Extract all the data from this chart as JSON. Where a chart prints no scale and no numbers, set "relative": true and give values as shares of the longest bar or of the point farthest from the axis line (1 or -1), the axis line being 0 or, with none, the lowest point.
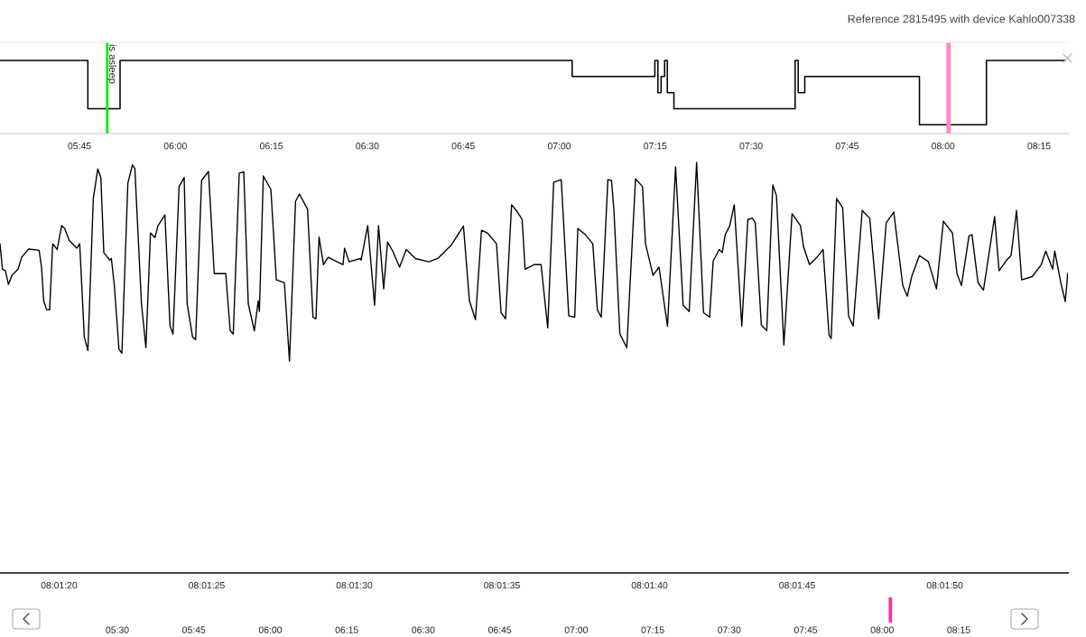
{
  "chart_data": [
    {
      "type": "step",
      "title": "Reference 2815495 with device Kahlo007338",
      "relative": true,
      "grid": false,
      "xlim": [
        5.543,
        8.3276
      ],
      "xticks": [
        {
          "value": 5.75,
          "label": "05:45"
        },
        {
          "value": 6.0,
          "label": "06:00"
        },
        {
          "value": 6.25,
          "label": "06:15"
        },
        {
          "value": 6.5,
          "label": "06:30"
        },
        {
          "value": 6.75,
          "label": "06:45"
        },
        {
          "value": 7.0,
          "label": "07:00"
        },
        {
          "value": 7.25,
          "label": "07:15"
        },
        {
          "value": 7.5,
          "label": "07:30"
        },
        {
          "value": 7.75,
          "label": "07:45"
        },
        {
          "value": 8.0,
          "label": "08:00"
        },
        {
          "value": 8.25,
          "label": "08:15"
        }
      ],
      "ref_lines": [
        {
          "axis": "x",
          "value": 5.8224,
          "label": "is asleep",
          "color": "#00ee00"
        },
        {
          "axis": "x",
          "value": 8.0143,
          "label": null,
          "color": "#ff88cc"
        }
      ],
      "series": [
        {
          "color": "#000000",
          "x": [
            5.543,
            5.7719,
            5.8558,
            7.0336,
            7.2491,
            7.257,
            7.2653,
            7.2745,
            7.2815,
            7.2987,
            7.6145,
            7.6225,
            7.6397,
            7.9384,
            8.1129,
            8.3182
          ],
          "values": [
            1.0,
            0.34,
            1.0,
            0.78,
            1.0,
            0.56,
            0.78,
            1.0,
            0.56,
            0.34,
            1.0,
            0.56,
            0.78,
            0.12,
            1.0,
            1.0
          ]
        }
      ]
    },
    {
      "type": "line",
      "relative": true,
      "grid": false,
      "xlim": [
        8.021666,
        8.031715
      ],
      "xticks": [
        {
          "value": 8.022222,
          "label": "08:01:20"
        },
        {
          "value": 8.023611,
          "label": "08:01:25"
        },
        {
          "value": 8.025,
          "label": "08:01:30"
        },
        {
          "value": 8.026389,
          "label": "08:01:35"
        },
        {
          "value": 8.027778,
          "label": "08:01:40"
        },
        {
          "value": 8.029167,
          "label": "08:01:45"
        },
        {
          "value": 8.030556,
          "label": "08:01:50"
        }
      ],
      "series": [
        {
          "color": "#000000",
          "x": [
            8.021666,
            8.021689,
            8.021717,
            8.021745,
            8.021779,
            8.021836,
            8.02187,
            8.021935,
            8.022034,
            8.022057,
            8.022077,
            8.022105,
            8.022133,
            8.022162,
            8.022204,
            8.022246,
            8.022275,
            8.022317,
            8.022388,
            8.022416,
            8.022459,
            8.022493,
            8.022544,
            8.022586,
            8.022615,
            8.022643,
            8.0227,
            8.022714,
            8.022742,
            8.022785,
            8.022813,
            8.022869,
            8.022912,
            8.022935,
            8.022997,
            8.023039,
            8.023082,
            8.023124,
            8.023153,
            8.023218,
            8.023266,
            8.023294,
            8.023351,
            8.023399,
            8.023427,
            8.023478,
            8.023507,
            8.023563,
            8.023628,
            8.023682,
            8.023761,
            8.02379,
            8.023832,
            8.023861,
            8.023917,
            8.02396,
            8.024002,
            8.024059,
            8.024096,
            8.024107,
            8.024144,
            8.024215,
            8.024266,
            8.024342,
            8.02439,
            8.024447,
            8.024484,
            8.02456,
            8.024611,
            8.024639,
            8.024668,
            8.02471,
            8.024753,
            8.024894,
            8.024908,
            8.024951,
            8.025058,
            8.025064,
            8.025126,
            8.025191,
            8.025228,
            8.025276,
            8.025313,
            8.025361,
            8.025426,
            8.025489,
            8.025574,
            8.025701,
            8.025786,
            8.025914,
            8.026027,
            8.026083,
            8.02614,
            8.026197,
            8.026253,
            8.026338,
            8.026381,
            8.026423,
            8.02648,
            8.026536,
            8.026579,
            8.026607,
            8.026692,
            8.026757,
            8.02682,
            8.026876,
            8.026947,
            8.027018,
            8.027074,
            8.027103,
            8.027174,
            8.027244,
            8.027287,
            8.027324,
            8.027386,
            8.02742,
            8.027443,
            8.027499,
            8.027564,
            8.027646,
            8.027712,
            8.02774,
            8.027811,
            8.027867,
            8.027947,
            8.028023,
            8.028094,
            8.028151,
            8.028221,
            8.028286,
            8.028343,
            8.028377,
            8.028434,
            8.028462,
            8.02849,
            8.028533,
            8.028575,
            8.028646,
            8.028703,
            8.028745,
            8.028773,
            8.02883,
            8.028881,
            8.028938,
            8.028972,
            8.029042,
            8.029119,
            8.029198,
            8.029227,
            8.029283,
            8.029354,
            8.029411,
            8.029467,
            8.029487,
            8.029538,
            8.029595,
            8.029651,
            8.029694,
            8.029779,
            8.02985,
            8.029934,
            8.030005,
            8.030076,
            8.030161,
            8.030203,
            8.030246,
            8.030317,
            8.030402,
            8.030478,
            8.030543,
            8.030628,
            8.030671,
            8.030713,
            8.030784,
            8.030812,
            8.030869,
            8.03092,
            8.031025,
            8.031067,
            8.031138,
            8.03118,
            8.031231,
            8.03128,
            8.031379,
            8.031464,
            8.031506,
            8.031571,
            8.031591,
            8.031648,
            8.03169,
            8.031713
          ],
          "values": [
            0.802,
            0.74,
            0.736,
            0.703,
            0.725,
            0.74,
            0.769,
            0.789,
            0.786,
            0.744,
            0.663,
            0.641,
            0.641,
            0.802,
            0.788,
            0.846,
            0.839,
            0.81,
            0.791,
            0.802,
            0.575,
            0.542,
            0.912,
            0.984,
            0.963,
            0.78,
            0.762,
            0.766,
            0.7,
            0.546,
            0.535,
            0.949,
            0.994,
            0.985,
            0.656,
            0.549,
            0.828,
            0.817,
            0.846,
            0.872,
            0.601,
            0.582,
            0.941,
            0.963,
            0.656,
            0.575,
            0.568,
            0.956,
            0.978,
            0.729,
            0.729,
            0.729,
            0.59,
            0.582,
            0.974,
            0.977,
            0.656,
            0.59,
            0.663,
            0.637,
            0.967,
            0.934,
            0.714,
            0.707,
            0.516,
            0.905,
            0.923,
            0.886,
            0.623,
            0.619,
            0.818,
            0.751,
            0.769,
            0.751,
            0.791,
            0.758,
            0.766,
            0.762,
            0.846,
            0.652,
            0.846,
            0.692,
            0.806,
            0.784,
            0.745,
            0.788,
            0.766,
            0.758,
            0.766,
            0.799,
            0.845,
            0.663,
            0.617,
            0.835,
            0.828,
            0.802,
            0.634,
            0.619,
            0.897,
            0.879,
            0.861,
            0.74,
            0.751,
            0.751,
            0.597,
            0.952,
            0.958,
            0.626,
            0.623,
            0.839,
            0.824,
            0.802,
            0.641,
            0.623,
            0.958,
            0.956,
            0.883,
            0.582,
            0.549,
            0.96,
            0.941,
            0.802,
            0.725,
            0.745,
            0.601,
            0.989,
            0.652,
            0.637,
            1.0,
            0.634,
            0.623,
            0.76,
            0.788,
            0.78,
            0.824,
            0.846,
            0.897,
            0.601,
            0.861,
            0.864,
            0.853,
            0.604,
            0.59,
            0.945,
            0.919,
            0.555,
            0.875,
            0.846,
            0.795,
            0.751,
            0.769,
            0.788,
            0.579,
            0.571,
            0.912,
            0.89,
            0.626,
            0.601,
            0.883,
            0.864,
            0.619,
            0.853,
            0.879,
            0.7,
            0.674,
            0.723,
            0.773,
            0.758,
            0.692,
            0.857,
            0.828,
            0.729,
            0.7,
            0.821,
            0.824,
            0.707,
            0.689,
            0.868,
            0.736,
            0.762,
            0.773,
            0.883,
            0.714,
            0.722,
            0.751,
            0.784,
            0.74,
            0.784,
            0.707,
            0.661,
            0.73
          ]
        }
      ]
    },
    {
      "type": "bar",
      "relative": true,
      "xlim": [
        5.5,
        8.25
      ],
      "xticks": [
        {
          "value": 5.5,
          "label": "05:30"
        },
        {
          "value": 5.75,
          "label": "05:45"
        },
        {
          "value": 6.0,
          "label": "06:00"
        },
        {
          "value": 6.25,
          "label": "06:15"
        },
        {
          "value": 6.5,
          "label": "06:30"
        },
        {
          "value": 6.75,
          "label": "06:45"
        },
        {
          "value": 7.0,
          "label": "07:00"
        },
        {
          "value": 7.25,
          "label": "07:15"
        },
        {
          "value": 7.5,
          "label": "07:30"
        },
        {
          "value": 7.75,
          "label": "07:45"
        },
        {
          "value": 8.0,
          "label": "08:00"
        },
        {
          "value": 8.25,
          "label": "08:15"
        }
      ],
      "series": [
        {
          "color": "#ff2fa0",
          "x": [
            8.0267
          ],
          "values": [
            1.0
          ]
        }
      ]
    }
  ]
}
